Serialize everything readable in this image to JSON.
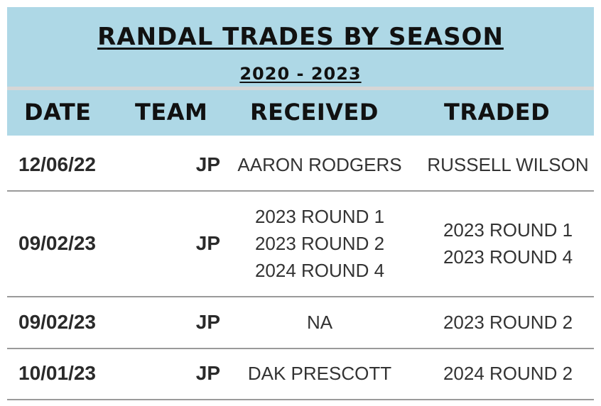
{
  "header": {
    "title": "RANDAL TRADES BY SEASON",
    "subtitle": "2020 - 2023"
  },
  "columns": {
    "date": "DATE",
    "team": "TEAM",
    "received": "RECEIVED",
    "traded": "TRADED"
  },
  "rows": [
    {
      "date": "12/06/22",
      "team": "JP",
      "received": [
        "AARON RODGERS"
      ],
      "traded": [
        "RUSSELL WILSON"
      ]
    },
    {
      "date": "09/02/23",
      "team": "JP",
      "received": [
        "2023 ROUND 1",
        "2023 ROUND 2",
        "2024 ROUND 4"
      ],
      "traded": [
        "2023 ROUND 1",
        "2023 ROUND 4"
      ]
    },
    {
      "date": "09/02/23",
      "team": "JP",
      "received": [
        "NA"
      ],
      "traded": [
        "2023 ROUND 2"
      ]
    },
    {
      "date": "10/01/23",
      "team": "JP",
      "received": [
        "DAK PRESCOTT"
      ],
      "traded": [
        "2024 ROUND 2"
      ]
    }
  ],
  "colors": {
    "header_bg": "#aed8e6",
    "text": "#111111",
    "row_line": "#9a9a9a"
  }
}
